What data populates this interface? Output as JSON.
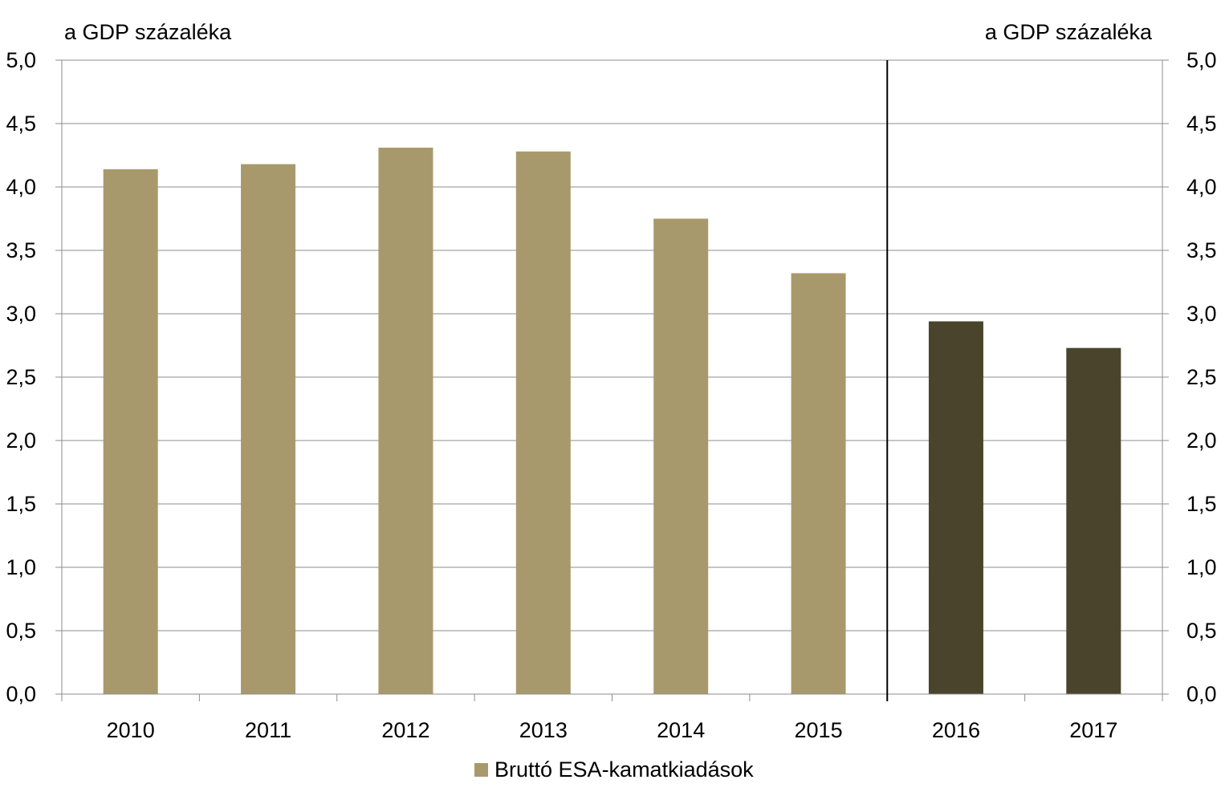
{
  "chart_data": {
    "type": "bar",
    "y_unit_left": "a GDP százaléka",
    "y_unit_right": "a GDP százaléka",
    "categories": [
      "2010",
      "2011",
      "2012",
      "2013",
      "2014",
      "2015",
      "2016",
      "2017"
    ],
    "series": [
      {
        "name": "Bruttó ESA-kamatkiadások",
        "values": [
          4.14,
          4.18,
          4.31,
          4.28,
          3.75,
          3.32,
          2.94,
          2.73
        ]
      }
    ],
    "y_ticks": [
      "0,0",
      "0,5",
      "1,0",
      "1,5",
      "2,0",
      "2,5",
      "3,0",
      "3,5",
      "4,0",
      "4,5",
      "5,0"
    ],
    "ylim": [
      0,
      5
    ],
    "grid": true,
    "legend_position": "bottom",
    "colors": {
      "actual": "#A8996D",
      "forecast": "#4A442C",
      "forecast_from_index": 6,
      "divider_after": "2015"
    }
  }
}
